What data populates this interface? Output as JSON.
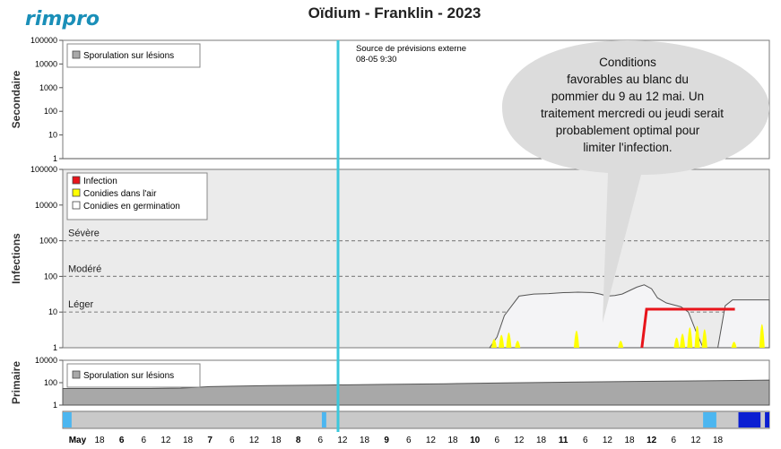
{
  "brand": {
    "logo": "rimpro"
  },
  "title": "Oïdium - Franklin - 2023",
  "forecast_note": {
    "line1": "Source de prévisions externe",
    "line2": "08-05 9:30"
  },
  "callout": {
    "lines": [
      "Conditions",
      "favorables au blanc du",
      "pommier du 9 au 12 mai. Un",
      "traitement mercredi ou jeudi serait",
      "probablement optimal pour",
      "limiter l'infection."
    ]
  },
  "colors": {
    "panel_bg": "#ebebeb",
    "secondary_bg": "#ffffff",
    "germination_fill": "#f4f4f6",
    "conidia": "#ffff00",
    "infection": "#e8141b",
    "now_line": "#3cc8dc",
    "primary_area": "#a8a8a8",
    "bar_gray": "#c9c9c9",
    "bar_light_blue": "#4cb6f0",
    "bar_dark_blue": "#0b1fd2",
    "callout_bg": "#dcdcdc"
  },
  "chart_data": [
    {
      "id": "secondary",
      "type": "area",
      "ylabel": "Secondaire",
      "yscale": "log",
      "ylim": [
        1,
        100000
      ],
      "yticks": [
        "100000",
        "10000",
        "1000",
        "100",
        "10",
        "1"
      ],
      "legend": {
        "items": [
          "Sporulation sur lésions"
        ],
        "placement": "top-left"
      },
      "series": [
        {
          "name": "Sporulation sur lésions",
          "x": [
            0,
            20
          ],
          "y": [
            1,
            1
          ]
        }
      ]
    },
    {
      "id": "infections",
      "type": "area",
      "ylabel": "Infections",
      "yscale": "log",
      "ylim": [
        1,
        100000
      ],
      "yticks": [
        "100000",
        "10000",
        "1000",
        "100",
        "10",
        "1"
      ],
      "severity_lines": [
        {
          "label": "Sévère",
          "value": 1000
        },
        {
          "label": "Modéré",
          "value": 100
        },
        {
          "label": "Léger",
          "value": 10
        }
      ],
      "legend": {
        "items": [
          "Infection",
          "Conidies dans l'air",
          "Conidies en germination"
        ],
        "placement": "top-left"
      },
      "series": [
        {
          "name": "Conidies en germination",
          "x": [
            14.5,
            14.75,
            15.0,
            15.25,
            15.5,
            16.0,
            16.5,
            17.0,
            17.5,
            18.0,
            18.25,
            18.5,
            18.75,
            19.0,
            19.25,
            19.5,
            19.75,
            20.0,
            20.2,
            20.5,
            21.0,
            21.25,
            21.5,
            21.75,
            22.0,
            22.25,
            22.5,
            22.75,
            23.0,
            23.25,
            23.5,
            24.0
          ],
          "y": [
            1,
            2,
            8,
            15,
            28,
            32,
            33,
            35,
            36,
            35,
            32,
            28,
            29,
            32,
            40,
            50,
            58,
            45,
            25,
            18,
            14,
            10,
            3,
            1,
            1,
            1,
            15,
            22,
            22,
            22,
            22,
            22
          ]
        },
        {
          "name": "Infection",
          "x": [
            19.67,
            19.83,
            22.83
          ],
          "y": [
            1,
            12,
            12
          ]
        },
        {
          "name": "Conidies dans l'air",
          "peaks": [
            {
              "x": 14.65,
              "y": 1.8
            },
            {
              "x": 14.9,
              "y": 2.4
            },
            {
              "x": 15.15,
              "y": 2.8
            },
            {
              "x": 15.45,
              "y": 1.6
            },
            {
              "x": 17.45,
              "y": 3.2
            },
            {
              "x": 18.95,
              "y": 1.6
            },
            {
              "x": 20.85,
              "y": 2.0
            },
            {
              "x": 21.05,
              "y": 2.6
            },
            {
              "x": 21.3,
              "y": 4.0
            },
            {
              "x": 21.55,
              "y": 4.4
            },
            {
              "x": 21.8,
              "y": 3.5
            },
            {
              "x": 22.8,
              "y": 1.5
            },
            {
              "x": 23.75,
              "y": 5.0
            }
          ]
        }
      ]
    },
    {
      "id": "primary",
      "type": "area",
      "ylabel": "Primaire",
      "yscale": "log",
      "ylim": [
        1,
        10000
      ],
      "yticks": [
        "10000",
        "100",
        "1"
      ],
      "legend": {
        "items": [
          "Sporulation sur lésions"
        ],
        "placement": "top-left"
      },
      "series": [
        {
          "name": "Sporulation sur lésions",
          "x": [
            0,
            3,
            4,
            5,
            7,
            9,
            11,
            13,
            15,
            17,
            19,
            21,
            23,
            24
          ],
          "y": [
            30,
            30,
            32,
            45,
            55,
            62,
            70,
            80,
            95,
            110,
            125,
            140,
            160,
            170
          ]
        }
      ]
    }
  ],
  "status_bar": {
    "segments": [
      {
        "from": 0,
        "to": 0.3,
        "color": "light_blue"
      },
      {
        "from": 8.8,
        "to": 8.95,
        "color": "light_blue"
      },
      {
        "from": 21.75,
        "to": 22.2,
        "color": "light_blue"
      },
      {
        "from": 22.95,
        "to": 23.7,
        "color": "dark_blue"
      },
      {
        "from": 23.85,
        "to": 24,
        "color": "dark_blue"
      }
    ]
  },
  "x_axis": {
    "now": 9.35,
    "ticks": [
      {
        "x": 0.5,
        "label": "May",
        "bold": true
      },
      {
        "x": 1.25,
        "label": "18"
      },
      {
        "x": 2.0,
        "label": "6",
        "bold": true
      },
      {
        "x": 2.75,
        "label": "6"
      },
      {
        "x": 3.5,
        "label": "12"
      },
      {
        "x": 4.25,
        "label": "18"
      },
      {
        "x": 5.0,
        "label": "7",
        "bold": true
      },
      {
        "x": 5.75,
        "label": "6"
      },
      {
        "x": 6.5,
        "label": "12"
      },
      {
        "x": 7.25,
        "label": "18"
      },
      {
        "x": 8.0,
        "label": "8",
        "bold": true
      },
      {
        "x": 8.75,
        "label": "6"
      },
      {
        "x": 9.5,
        "label": "12"
      },
      {
        "x": 10.25,
        "label": "18"
      },
      {
        "x": 11.0,
        "label": "9",
        "bold": true
      },
      {
        "x": 11.75,
        "label": "6"
      },
      {
        "x": 12.5,
        "label": "12"
      },
      {
        "x": 13.25,
        "label": "18"
      },
      {
        "x": 14.0,
        "label": "10",
        "bold": true
      },
      {
        "x": 14.75,
        "label": "6"
      },
      {
        "x": 15.5,
        "label": "12"
      },
      {
        "x": 16.25,
        "label": "18"
      },
      {
        "x": 17.0,
        "label": "11",
        "bold": true
      },
      {
        "x": 17.75,
        "label": "6"
      },
      {
        "x": 18.5,
        "label": "12"
      },
      {
        "x": 19.25,
        "label": "18"
      },
      {
        "x": 20.0,
        "label": "12",
        "bold": true
      },
      {
        "x": 20.75,
        "label": "6"
      },
      {
        "x": 21.5,
        "label": "12"
      },
      {
        "x": 22.25,
        "label": "18"
      }
    ]
  }
}
